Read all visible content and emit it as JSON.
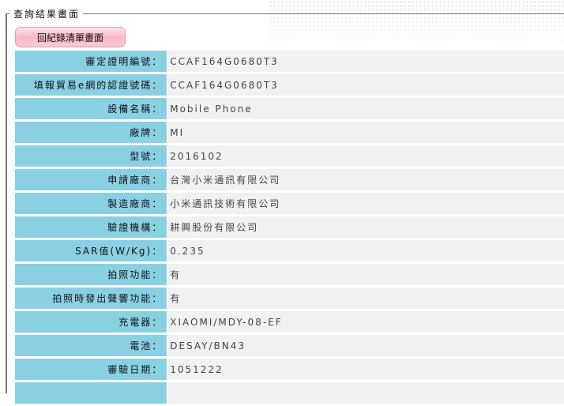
{
  "legend": "查詢結果畫面",
  "back_button": "回紀錄清單畫面",
  "rows": [
    {
      "label": "審定證明編號：",
      "value": "CCAF164G0680T3"
    },
    {
      "label": "填報貿易e網的認證號碼：",
      "value": "CCAF164G0680T3"
    },
    {
      "label": "設備名稱：",
      "value": "Mobile Phone"
    },
    {
      "label": "廠牌：",
      "value": "MI"
    },
    {
      "label": "型號：",
      "value": "2016102"
    },
    {
      "label": "申請廠商：",
      "value": "台灣小米通訊有限公司"
    },
    {
      "label": "製造廠商：",
      "value": "小米通訊技術有限公司"
    },
    {
      "label": "驗證機構：",
      "value": "耕興股份有限公司"
    },
    {
      "label": "SAR值(W/Kg)：",
      "value": "0.235"
    },
    {
      "label": "拍照功能：",
      "value": "有"
    },
    {
      "label": "拍照時發出聲響功能：",
      "value": "有"
    },
    {
      "label": "充電器：",
      "value": "XIAOMI/MDY-08-EF"
    },
    {
      "label": "電池：",
      "value": "DESAY/BN43"
    },
    {
      "label": "審驗日期：",
      "value": "1051222"
    },
    {
      "label": "",
      "value": ""
    }
  ]
}
